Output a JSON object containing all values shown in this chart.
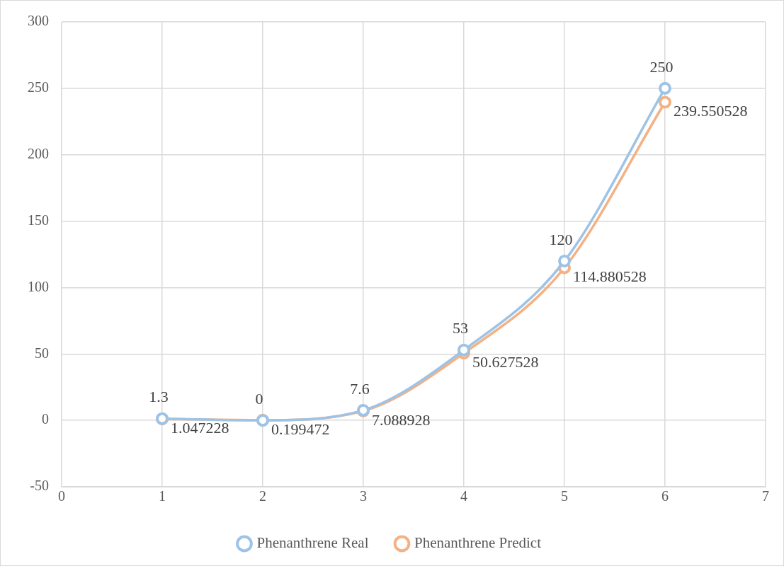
{
  "chart_data": {
    "type": "line",
    "x": [
      1,
      2,
      3,
      4,
      5,
      6
    ],
    "series": [
      {
        "name": "Phenanthrene Real",
        "color": "#9dc3e6",
        "values": [
          1.3,
          0,
          7.6,
          53,
          120,
          250
        ]
      },
      {
        "name": "Phenanthrene Predict",
        "color": "#f4b183",
        "values": [
          1.047228,
          0.199472,
          7.088928,
          50.627528,
          114.880528,
          239.550528
        ]
      }
    ],
    "xlim": [
      0,
      7
    ],
    "xticks": [
      0,
      1,
      2,
      3,
      4,
      5,
      6,
      7
    ],
    "ylim": [
      -50,
      300
    ],
    "yticks": [
      -50,
      0,
      50,
      100,
      150,
      200,
      250,
      300
    ],
    "grid": true,
    "legend": "bottom",
    "marker": "circle",
    "line_style": "solid",
    "data_labels": true
  }
}
